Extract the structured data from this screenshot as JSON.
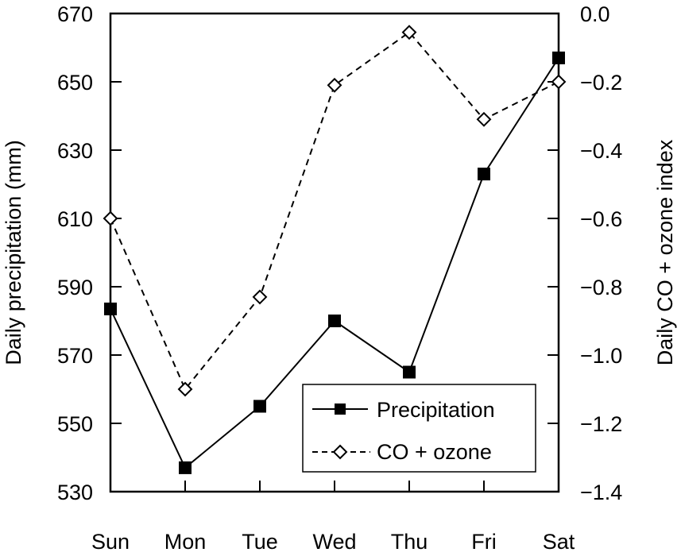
{
  "chart_data": {
    "type": "line",
    "title": "",
    "categories": [
      "Sun",
      "Mon",
      "Tue",
      "Wed",
      "Thu",
      "Fri",
      "Sat"
    ],
    "xlabel": "",
    "ylabel": "Daily precipitation (mm)",
    "ylabel_right": "Daily CO + ozone index",
    "ylim": [
      530,
      670
    ],
    "ylim_right": [
      -1.4,
      0.0
    ],
    "yticks": [
      "530",
      "550",
      "570",
      "590",
      "610",
      "630",
      "650",
      "670"
    ],
    "yticks_right": [
      "−1.4",
      "−1.2",
      "−1.0",
      "−0.8",
      "−0.6",
      "−0.4",
      "−0.2",
      "0.0"
    ],
    "grid": false,
    "legend_position": "bottom-right",
    "series": [
      {
        "name": "Precipitation",
        "axis": "left",
        "style": "solid",
        "marker": "filled-square",
        "values": [
          583.5,
          537,
          555,
          580,
          565,
          623,
          657
        ]
      },
      {
        "name": "CO + ozone",
        "axis": "right",
        "style": "dashed",
        "marker": "open-diamond",
        "values": [
          -0.6,
          -1.1,
          -0.83,
          -0.21,
          -0.055,
          -0.31,
          -0.2
        ]
      }
    ]
  }
}
